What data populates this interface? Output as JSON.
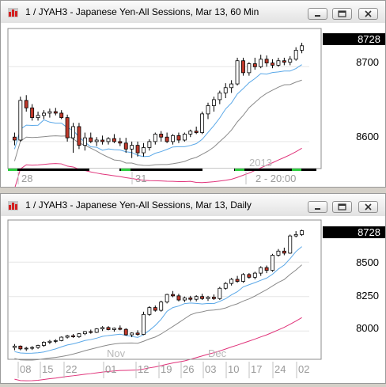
{
  "windows": [
    {
      "title": "1 / JYAH3 - Japanese Yen-All Sessions, Mar 13, 60 Min",
      "last_price": "8728",
      "y_ticks": [
        "8700",
        "8600"
      ],
      "x_labels": [
        "28",
        "31",
        "2"
      ],
      "session_labels": [
        "2013",
        "2 - 20:00"
      ],
      "chart_data": {
        "type": "candlestick",
        "title": "1 / JYAH3 - Japanese Yen-All Sessions, Mar 13, 60 Min",
        "ylim": [
          8565,
          8750
        ],
        "y_ticks": [
          8700,
          8600
        ],
        "last_price": 8728,
        "x_labels": [
          "28",
          "31",
          "2"
        ],
        "candles": [
          [
            8606,
            8612,
            8595,
            8602
          ],
          [
            8602,
            8660,
            8600,
            8655
          ],
          [
            8655,
            8662,
            8640,
            8645
          ],
          [
            8645,
            8650,
            8628,
            8632
          ],
          [
            8632,
            8640,
            8628,
            8635
          ],
          [
            8635,
            8642,
            8630,
            8638
          ],
          [
            8638,
            8644,
            8632,
            8640
          ],
          [
            8640,
            8645,
            8635,
            8638
          ],
          [
            8638,
            8642,
            8630,
            8632
          ],
          [
            8632,
            8636,
            8600,
            8605
          ],
          [
            8605,
            8625,
            8585,
            8620
          ],
          [
            8620,
            8625,
            8590,
            8595
          ],
          [
            8595,
            8612,
            8588,
            8605
          ],
          [
            8605,
            8612,
            8598,
            8600
          ],
          [
            8600,
            8606,
            8594,
            8602
          ],
          [
            8602,
            8608,
            8596,
            8600
          ],
          [
            8600,
            8606,
            8596,
            8604
          ],
          [
            8604,
            8610,
            8598,
            8600
          ],
          [
            8600,
            8605,
            8594,
            8598
          ],
          [
            8598,
            8605,
            8585,
            8590
          ],
          [
            8590,
            8600,
            8578,
            8595
          ],
          [
            8595,
            8600,
            8580,
            8585
          ],
          [
            8585,
            8598,
            8580,
            8592
          ],
          [
            8592,
            8603,
            8588,
            8600
          ],
          [
            8600,
            8612,
            8596,
            8610
          ],
          [
            8610,
            8614,
            8600,
            8606
          ],
          [
            8606,
            8612,
            8598,
            8600
          ],
          [
            8600,
            8610,
            8596,
            8608
          ],
          [
            8608,
            8612,
            8598,
            8602
          ],
          [
            8602,
            8612,
            8600,
            8610
          ],
          [
            8610,
            8616,
            8606,
            8614
          ],
          [
            8614,
            8620,
            8610,
            8612
          ],
          [
            8612,
            8640,
            8610,
            8637
          ],
          [
            8637,
            8652,
            8630,
            8648
          ],
          [
            8648,
            8660,
            8640,
            8656
          ],
          [
            8656,
            8668,
            8650,
            8665
          ],
          [
            8665,
            8678,
            8658,
            8672
          ],
          [
            8672,
            8682,
            8665,
            8677
          ],
          [
            8677,
            8712,
            8675,
            8708
          ],
          [
            8708,
            8712,
            8688,
            8692
          ],
          [
            8692,
            8706,
            8688,
            8704
          ],
          [
            8704,
            8712,
            8696,
            8700
          ],
          [
            8700,
            8716,
            8698,
            8710
          ],
          [
            8710,
            8715,
            8700,
            8705
          ],
          [
            8705,
            8710,
            8698,
            8702
          ],
          [
            8702,
            8712,
            8700,
            8708
          ],
          [
            8708,
            8712,
            8702,
            8706
          ],
          [
            8706,
            8714,
            8702,
            8710
          ],
          [
            8710,
            8726,
            8708,
            8722
          ],
          [
            8722,
            8732,
            8718,
            8728
          ]
        ]
      },
      "colors": {
        "up": "#ffffff",
        "down": "#c0392b",
        "ma_fast": "#5aa8e8",
        "ma_slow": "#8a8a8a",
        "ma_long": "#e0337a"
      }
    },
    {
      "title": "1 / JYAH3 - Japanese Yen-All Sessions, Mar 13, Daily",
      "last_price": "8728",
      "y_ticks": [
        "8500",
        "8250",
        "8000"
      ],
      "x_labels": [
        "08",
        "15",
        "22",
        "01",
        "12",
        "19",
        "26",
        "03",
        "10",
        "17",
        "24",
        "02"
      ],
      "month_labels": [
        "Nov",
        "Dec"
      ],
      "chart_data": {
        "type": "candlestick",
        "title": "1 / JYAH3 - Japanese Yen-All Sessions, Mar 13, Daily",
        "ylim": [
          7800,
          8800
        ],
        "y_ticks": [
          8500,
          8250,
          8000
        ],
        "last_price": 8728,
        "x_labels": [
          "08",
          "15",
          "22",
          "01",
          "12",
          "19",
          "26",
          "03",
          "10",
          "17",
          "24",
          "02"
        ],
        "candles": [
          [
            7880,
            7905,
            7860,
            7890
          ],
          [
            7890,
            7895,
            7860,
            7870
          ],
          [
            7870,
            7885,
            7855,
            7875
          ],
          [
            7875,
            7890,
            7862,
            7880
          ],
          [
            7880,
            7900,
            7870,
            7895
          ],
          [
            7895,
            7925,
            7885,
            7918
          ],
          [
            7918,
            7935,
            7905,
            7925
          ],
          [
            7925,
            7940,
            7912,
            7930
          ],
          [
            7930,
            7960,
            7925,
            7955
          ],
          [
            7955,
            7972,
            7945,
            7965
          ],
          [
            7965,
            7978,
            7950,
            7958
          ],
          [
            7958,
            7985,
            7950,
            7980
          ],
          [
            7980,
            8000,
            7970,
            7995
          ],
          [
            7995,
            8010,
            7980,
            7990
          ],
          [
            7990,
            8020,
            7985,
            8015
          ],
          [
            8015,
            8035,
            8000,
            8025
          ],
          [
            8025,
            8035,
            8005,
            8010
          ],
          [
            8010,
            8025,
            7995,
            8020
          ],
          [
            8020,
            8040,
            8005,
            8012
          ],
          [
            8012,
            8020,
            7965,
            7972
          ],
          [
            7972,
            7990,
            7955,
            7985
          ],
          [
            7985,
            8005,
            7965,
            7975
          ],
          [
            7975,
            8140,
            7970,
            8120
          ],
          [
            8120,
            8180,
            8110,
            8170
          ],
          [
            8170,
            8185,
            8140,
            8150
          ],
          [
            8150,
            8220,
            8140,
            8210
          ],
          [
            8210,
            8270,
            8200,
            8265
          ],
          [
            8265,
            8290,
            8245,
            8255
          ],
          [
            8255,
            8270,
            8215,
            8225
          ],
          [
            8225,
            8250,
            8210,
            8240
          ],
          [
            8240,
            8255,
            8215,
            8230
          ],
          [
            8230,
            8260,
            8215,
            8250
          ],
          [
            8250,
            8270,
            8225,
            8235
          ],
          [
            8235,
            8255,
            8218,
            8245
          ],
          [
            8245,
            8265,
            8225,
            8235
          ],
          [
            8235,
            8320,
            8225,
            8310
          ],
          [
            8310,
            8355,
            8300,
            8345
          ],
          [
            8345,
            8385,
            8330,
            8375
          ],
          [
            8375,
            8400,
            8350,
            8360
          ],
          [
            8360,
            8420,
            8350,
            8410
          ],
          [
            8410,
            8420,
            8380,
            8390
          ],
          [
            8390,
            8430,
            8375,
            8420
          ],
          [
            8420,
            8470,
            8400,
            8460
          ],
          [
            8460,
            8475,
            8420,
            8440
          ],
          [
            8440,
            8560,
            8430,
            8550
          ],
          [
            8550,
            8595,
            8540,
            8580
          ],
          [
            8580,
            8605,
            8550,
            8565
          ],
          [
            8565,
            8700,
            8560,
            8690
          ],
          [
            8690,
            8725,
            8680,
            8700
          ],
          [
            8700,
            8735,
            8690,
            8728
          ]
        ]
      },
      "colors": {
        "up": "#ffffff",
        "down": "#c0392b",
        "ma_fast": "#5aa8e8",
        "ma_slow": "#8a8a8a",
        "ma_long": "#e0337a"
      }
    }
  ]
}
